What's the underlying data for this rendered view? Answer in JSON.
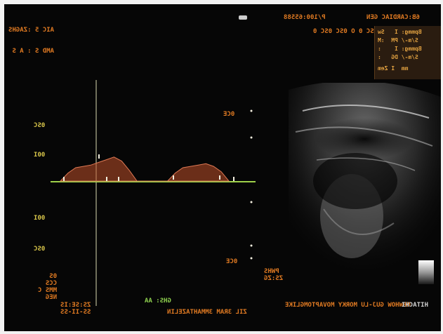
{
  "header": {
    "line1": "AIC 5 :ZAGHS",
    "line2": "AMD S : A S",
    "center_mark": "▬",
    "probe": "6B:CARDIAC GEN",
    "frame": "P/100:65588",
    "depth": "LA 0CC 0SC 0 O 0SC 0SC 0"
  },
  "params": {
    "rows": [
      "Bpmmg: I   Sw",
      "S/m-/ PM  :M",
      "Bpmmg: I    :",
      "S/m-/ DG   :",
      "mm  I Zem"
    ]
  },
  "doppler": {
    "scale_labels": [
      "0SC",
      "00I",
      "00I",
      "0SC"
    ],
    "right_labels": [
      "0CE",
      "0CE"
    ],
    "unit_text": [
      "0S",
      "CCS",
      "MMS C",
      "NEG"
    ],
    "hr": "PWHS",
    "hr_value": "ZS:ZG",
    "prf": "GHS: AA"
  },
  "footer": {
    "time": "ZS:SE:IS",
    "date": "SS-II-SS",
    "id": "ZIL 3RAM 3MMAHTAZELIN",
    "hospital": "NEWHOW GUJ-LU MORKY MOVAPTOMGLIKE",
    "side_text": "HITACHI"
  },
  "colors": {
    "screen_bg": "#060606",
    "baseline": "#9fd14a",
    "doppler_trace": "#c0502a",
    "text_orange": "#e07a22",
    "text_green": "#8fd14f"
  },
  "chart_data": {
    "type": "area",
    "title": "",
    "xlabel": "",
    "ylabel": "",
    "series": [
      {
        "values": [
          0,
          0.3,
          0.5,
          0.55,
          0.6,
          0.7,
          0.8,
          0.9,
          0.75,
          0.4,
          0,
          0,
          0,
          0,
          0,
          0.3,
          0.5,
          0.55,
          0.6,
          0.65,
          0.55,
          0.35,
          0
        ]
      }
    ],
    "grid": false,
    "legend": "none"
  }
}
